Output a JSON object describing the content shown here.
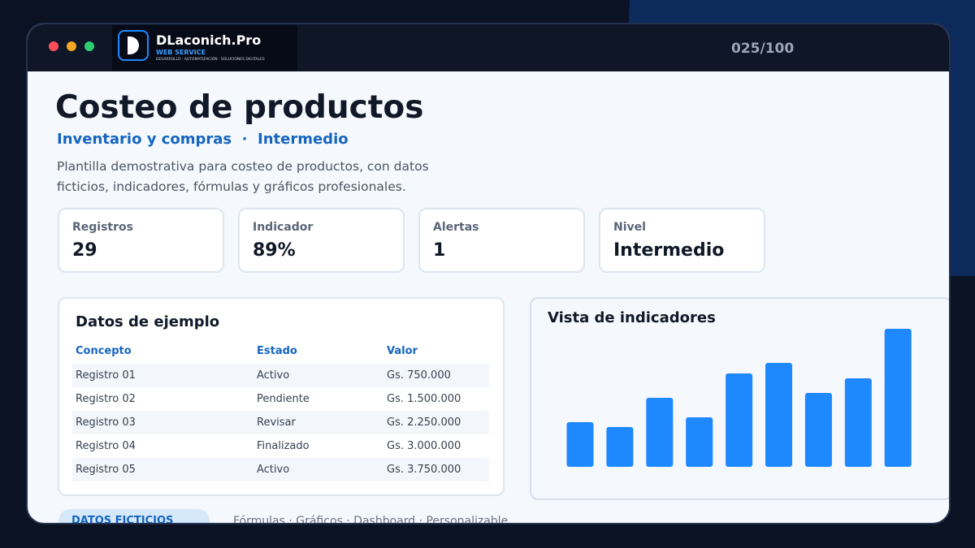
{
  "header": {
    "brand": "DLaconich.Pro",
    "brand_sub": "WEB SERVICE",
    "tagline": "DESARROLLO · AUTOMATIZACIÓN · SOLUCIONES DIGITALES",
    "counter": "025/100"
  },
  "title": "Costeo de productos",
  "subtitle": "Inventario y compras  ·  Intermedio",
  "description": "Plantilla demostrativa para costeo de productos, con datos ficticios, indicadores, fórmulas y gráficos profesionales.",
  "kpis": [
    {
      "label": "Registros",
      "value": "29"
    },
    {
      "label": "Indicador",
      "value": "89%"
    },
    {
      "label": "Alertas",
      "value": "1"
    },
    {
      "label": "Nivel",
      "value": "Intermedio"
    }
  ],
  "table": {
    "title": "Datos de ejemplo",
    "columns": [
      "Concepto",
      "Estado",
      "Valor"
    ],
    "rows": [
      [
        "Registro 01",
        "Activo",
        "Gs. 750.000"
      ],
      [
        "Registro 02",
        "Pendiente",
        "Gs. 1.500.000"
      ],
      [
        "Registro 03",
        "Revisar",
        "Gs. 2.250.000"
      ],
      [
        "Registro 04",
        "Finalizado",
        "Gs. 3.000.000"
      ],
      [
        "Registro 05",
        "Activo",
        "Gs. 3.750.000"
      ]
    ]
  },
  "chart_data": {
    "type": "bar",
    "title": "Vista de indicadores",
    "values": [
      55,
      49,
      85,
      61,
      115,
      128,
      91,
      109,
      170
    ],
    "color": "#1e88ff"
  },
  "footer": {
    "badge": "DATOS FICTICIOS",
    "features": "Fórmulas · Gráficos · Dashboard · Personalizable"
  }
}
